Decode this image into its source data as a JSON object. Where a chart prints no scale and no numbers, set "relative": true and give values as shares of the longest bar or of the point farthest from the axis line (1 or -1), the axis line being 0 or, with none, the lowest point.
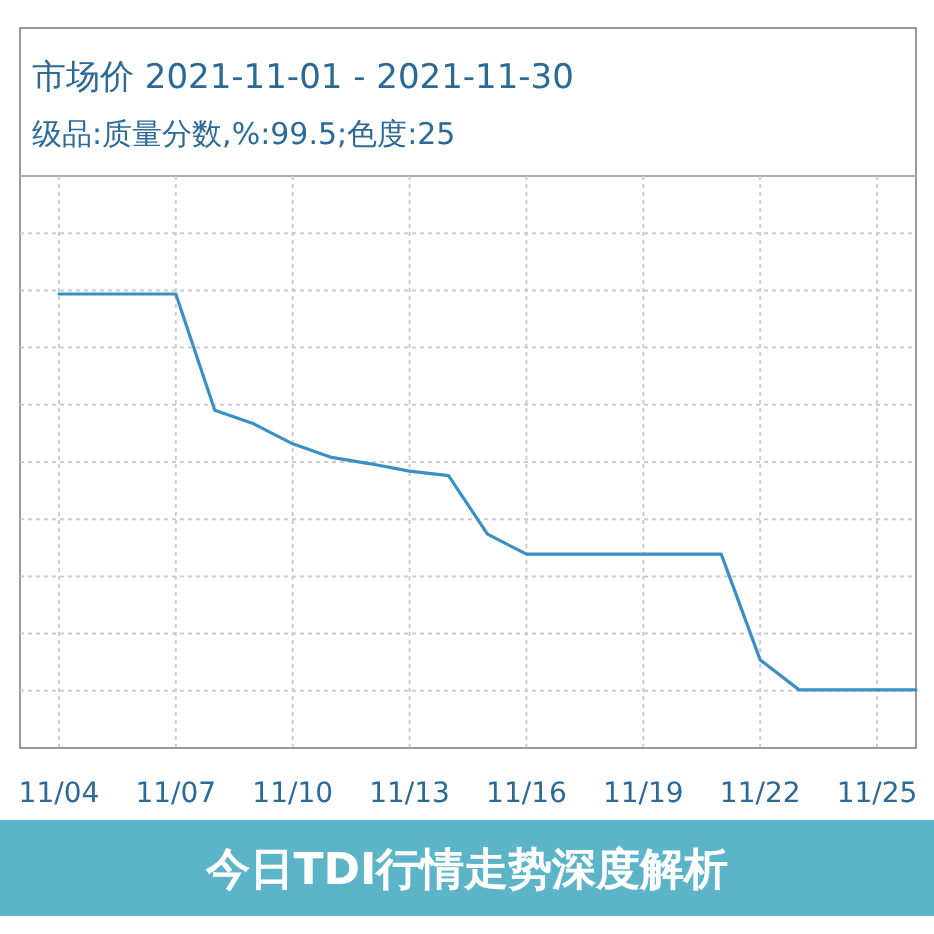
{
  "chart_data": {
    "type": "line",
    "title": "市场价 2021-11-01 - 2021-11-30",
    "subtitle": "级品:质量分数,%:99.5;色度:25",
    "relative": true,
    "grid": true,
    "marker": "none",
    "line_style": "solid",
    "x": [
      "2021-11-04",
      "2021-11-05",
      "2021-11-06",
      "2021-11-07",
      "2021-11-08",
      "2021-11-09",
      "2021-11-10",
      "2021-11-11",
      "2021-11-12",
      "2021-11-13",
      "2021-11-14",
      "2021-11-15",
      "2021-11-16",
      "2021-11-17",
      "2021-11-18",
      "2021-11-19",
      "2021-11-20",
      "2021-11-21",
      "2021-11-22",
      "2021-11-23",
      "2021-11-24",
      "2021-11-25",
      "2021-11-26"
    ],
    "series": [
      {
        "color": "#3a8fc4",
        "values": [
          1,
          1,
          1,
          1,
          0.744,
          0.714,
          0.67,
          0.64,
          0.626,
          0.61,
          0.6,
          0.471,
          0.427,
          0.427,
          0.427,
          0.427,
          0.427,
          0.427,
          0.194,
          0.128,
          0.128,
          0.128,
          0.128
        ]
      }
    ],
    "xlim": [
      "2021-11-03",
      "2021-11-26"
    ],
    "xticks": [
      {
        "value": "2021-11-04",
        "label": "11/04"
      },
      {
        "value": "2021-11-07",
        "label": "11/07"
      },
      {
        "value": "2021-11-10",
        "label": "11/10"
      },
      {
        "value": "2021-11-13",
        "label": "11/13"
      },
      {
        "value": "2021-11-16",
        "label": "11/16"
      },
      {
        "value": "2021-11-19",
        "label": "11/19"
      },
      {
        "value": "2021-11-22",
        "label": "11/22"
      },
      {
        "value": "2021-11-25",
        "label": "11/25"
      }
    ],
    "annotations": [
      "今日TDI行情走势深度解析"
    ]
  }
}
